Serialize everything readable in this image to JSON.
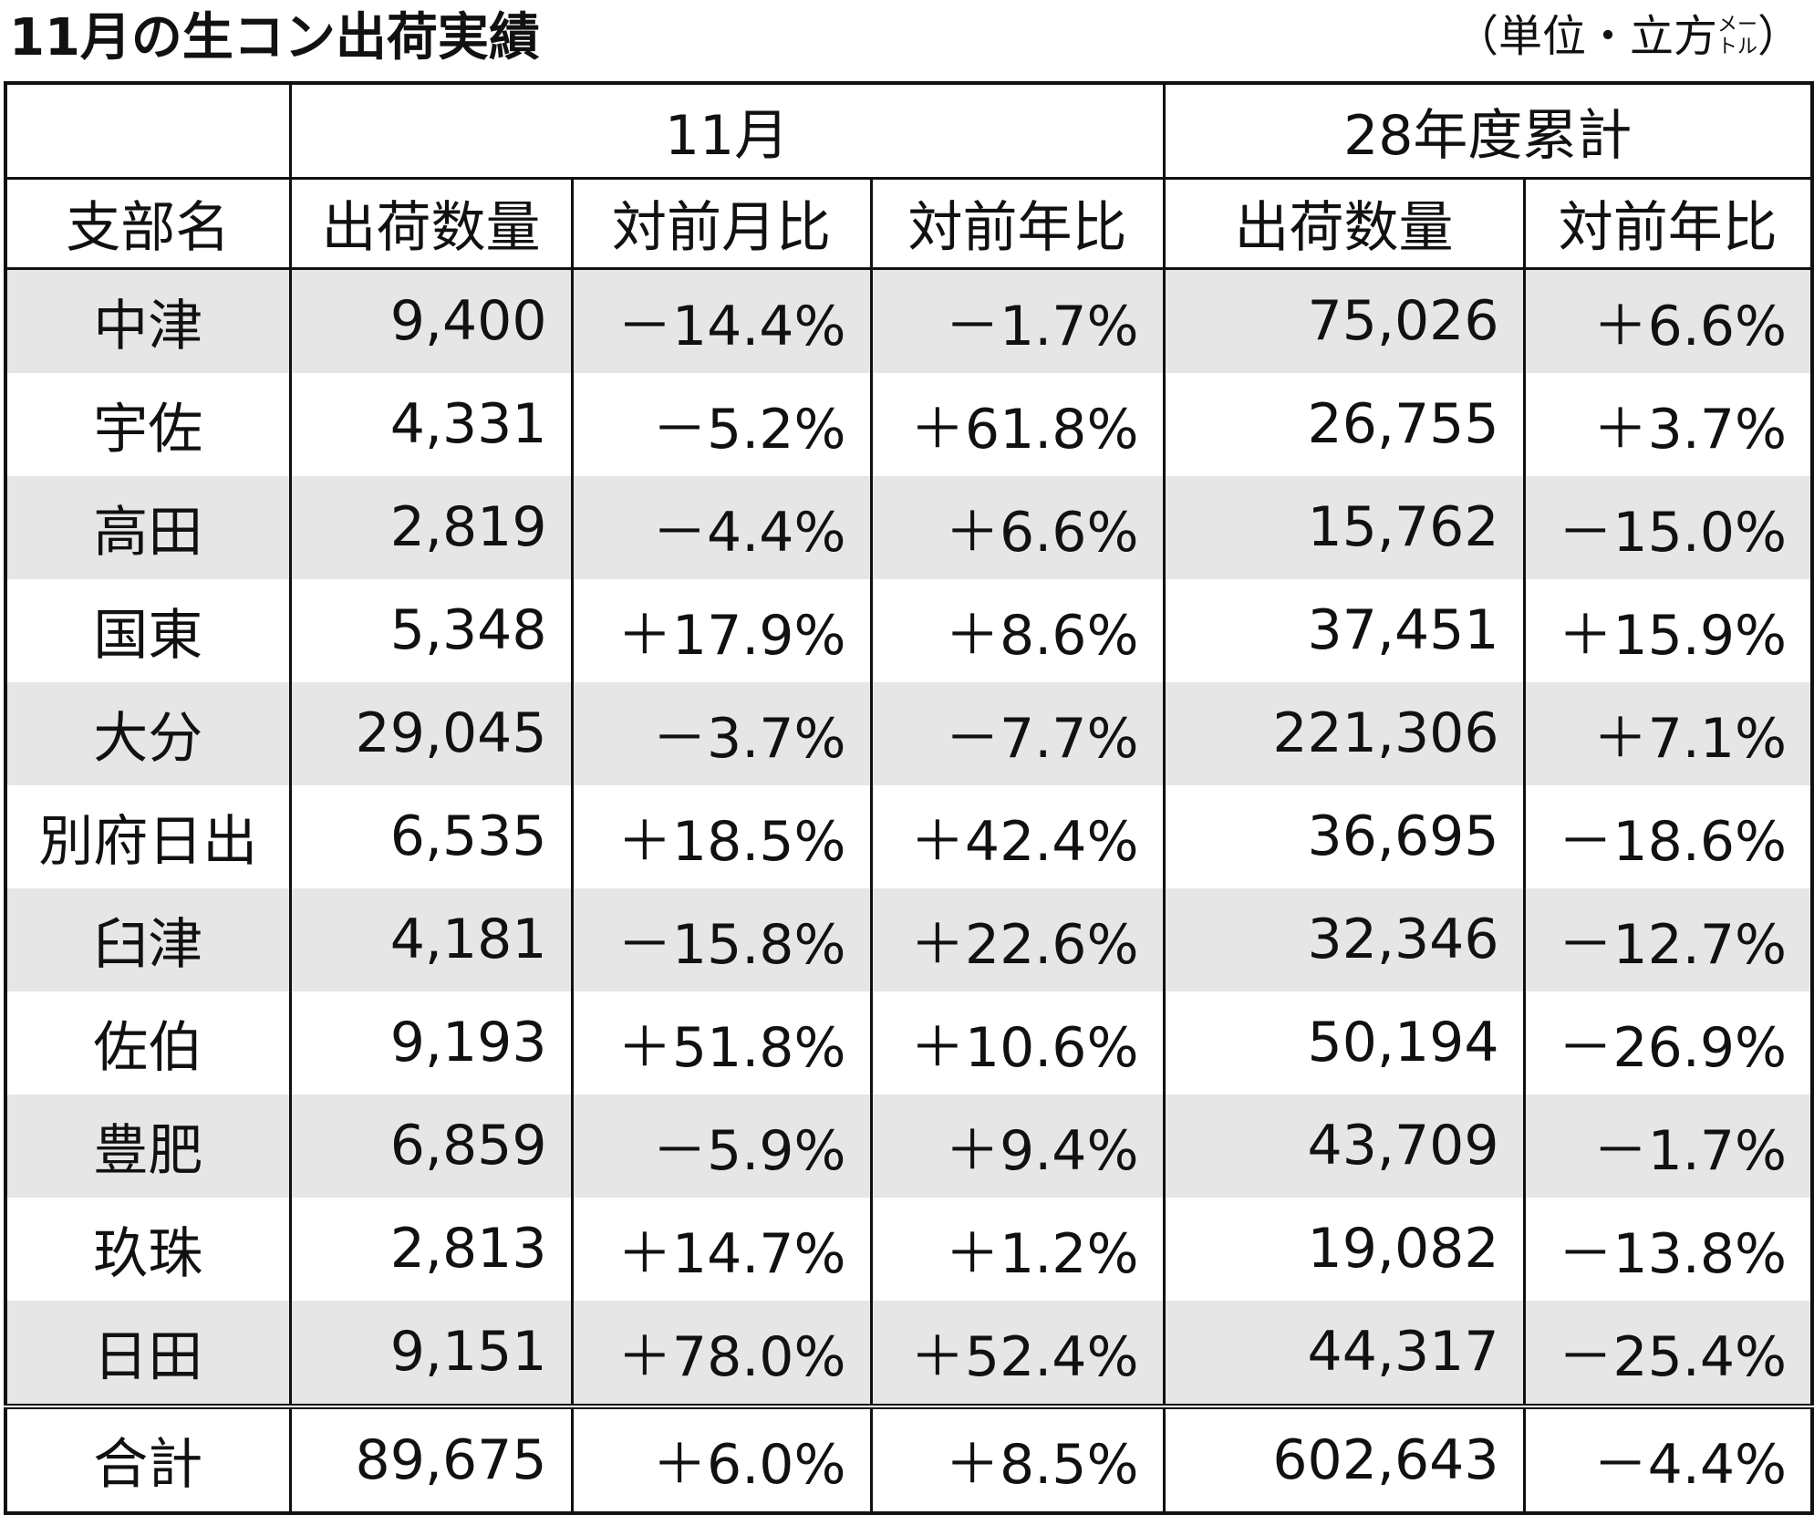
{
  "header": {
    "title": "11月の生コン出荷実績",
    "unit": {
      "open": "（単位・立方",
      "small_top": "メー",
      "small_bottom": "トル",
      "close": "）"
    }
  },
  "table": {
    "groups": [
      "11月",
      "28年度累計"
    ],
    "columns": [
      "支部名",
      "出荷数量",
      "対前月比",
      "対前年比",
      "出荷数量",
      "対前年比"
    ],
    "rows": [
      [
        "中津",
        "9,400",
        "－14.4%",
        "－1.7%",
        "75,026",
        "＋6.6%"
      ],
      [
        "宇佐",
        "4,331",
        "－5.2%",
        "＋61.8%",
        "26,755",
        "＋3.7%"
      ],
      [
        "高田",
        "2,819",
        "－4.4%",
        "＋6.6%",
        "15,762",
        "－15.0%"
      ],
      [
        "国東",
        "5,348",
        "＋17.9%",
        "＋8.6%",
        "37,451",
        "＋15.9%"
      ],
      [
        "大分",
        "29,045",
        "－3.7%",
        "－7.7%",
        "221,306",
        "＋7.1%"
      ],
      [
        "別府日出",
        "6,535",
        "＋18.5%",
        "＋42.4%",
        "36,695",
        "－18.6%"
      ],
      [
        "臼津",
        "4,181",
        "－15.8%",
        "＋22.6%",
        "32,346",
        "－12.7%"
      ],
      [
        "佐伯",
        "9,193",
        "＋51.8%",
        "＋10.6%",
        "50,194",
        "－26.9%"
      ],
      [
        "豊肥",
        "6,859",
        "－5.9%",
        "＋9.4%",
        "43,709",
        "－1.7%"
      ],
      [
        "玖珠",
        "2,813",
        "＋14.7%",
        "＋1.2%",
        "19,082",
        "－13.8%"
      ],
      [
        "日田",
        "9,151",
        "＋78.0%",
        "＋52.4%",
        "44,317",
        "－25.4%"
      ]
    ],
    "total": [
      "合計",
      "89,675",
      "＋6.0%",
      "＋8.5%",
      "602,643",
      "－4.4%"
    ]
  }
}
